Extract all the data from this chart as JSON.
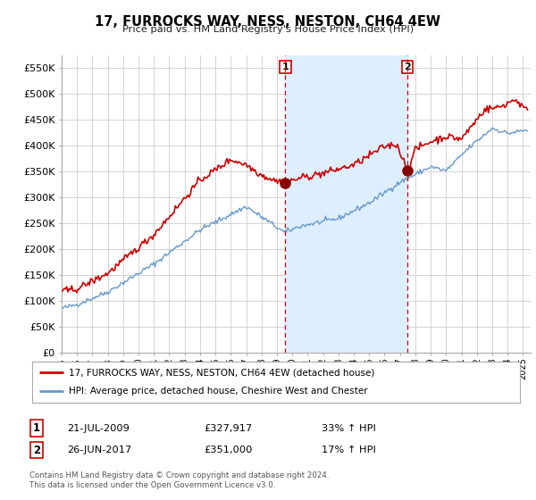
{
  "title": "17, FURROCKS WAY, NESS, NESTON, CH64 4EW",
  "subtitle": "Price paid vs. HM Land Registry's House Price Index (HPI)",
  "ylabel_ticks": [
    "£0",
    "£50K",
    "£100K",
    "£150K",
    "£200K",
    "£250K",
    "£300K",
    "£350K",
    "£400K",
    "£450K",
    "£500K",
    "£550K"
  ],
  "ytick_values": [
    0,
    50000,
    100000,
    150000,
    200000,
    250000,
    300000,
    350000,
    400000,
    450000,
    500000,
    550000
  ],
  "ylim": [
    0,
    575000
  ],
  "xlim_start": 1995.0,
  "xlim_end": 2025.5,
  "sale1_x": 2009.55,
  "sale1_y": 327917,
  "sale2_x": 2017.48,
  "sale2_y": 351000,
  "legend_line1": "17, FURROCKS WAY, NESS, NESTON, CH64 4EW (detached house)",
  "legend_line2": "HPI: Average price, detached house, Cheshire West and Chester",
  "table_row1": [
    "1",
    "21-JUL-2009",
    "£327,917",
    "33% ↑ HPI"
  ],
  "table_row2": [
    "2",
    "26-JUN-2017",
    "£351,000",
    "17% ↑ HPI"
  ],
  "footer": "Contains HM Land Registry data © Crown copyright and database right 2024.\nThis data is licensed under the Open Government Licence v3.0.",
  "red_color": "#cc0000",
  "blue_color": "#6699cc",
  "shade_color": "#ddeeff",
  "background_color": "#ffffff",
  "grid_color": "#cccccc"
}
